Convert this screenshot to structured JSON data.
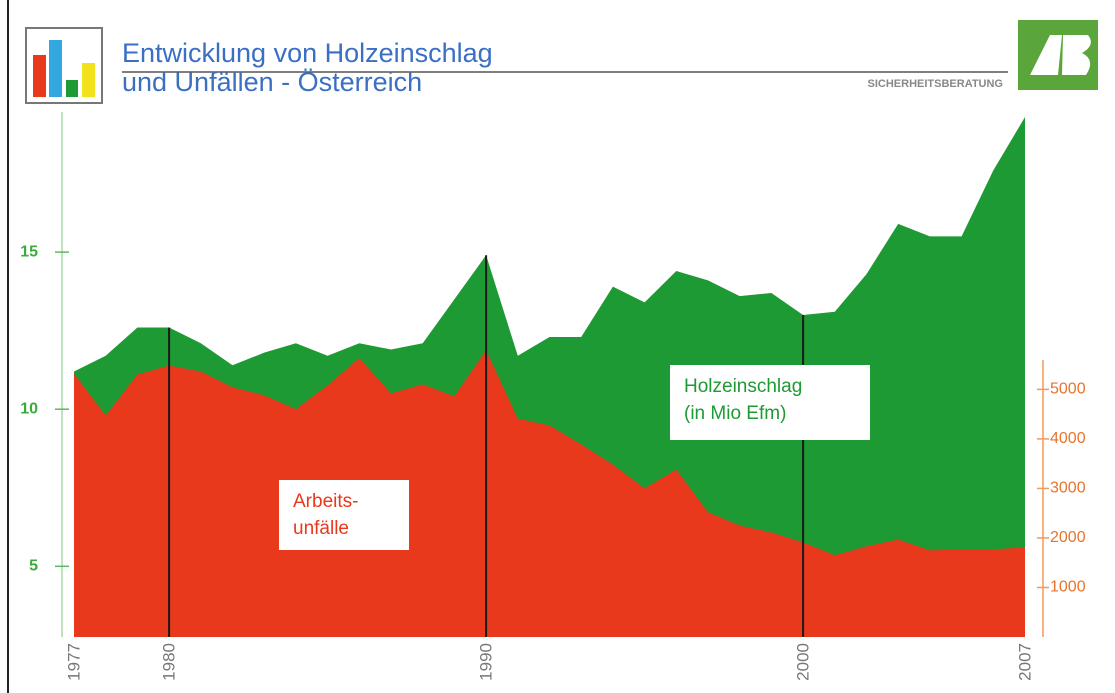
{
  "chart_data": {
    "type": "area",
    "title": "Entwicklung von Holzeinschlag\nund Unfällen - Österreich",
    "subtitle": "SICHERHEITSBERATUNG",
    "x": [
      1977,
      1978,
      1979,
      1980,
      1981,
      1982,
      1983,
      1984,
      1985,
      1986,
      1987,
      1988,
      1989,
      1990,
      1991,
      1992,
      1993,
      1994,
      1995,
      1996,
      1997,
      1998,
      1999,
      2000,
      2001,
      2002,
      2003,
      2004,
      2005,
      2006,
      2007
    ],
    "xlim": [
      1977,
      2007
    ],
    "xticks": [
      1977,
      1980,
      1990,
      2000,
      2007
    ],
    "ylim": [
      2.75,
      19.3
    ],
    "yticks": [
      5,
      10,
      15
    ],
    "y2lim": [
      0,
      10500
    ],
    "y2ticks": [
      1000,
      2000,
      3000,
      4000,
      5000
    ],
    "series": [
      {
        "name": "Holzeinschlag\n(in Mio Efm)",
        "color": "#1e9a34",
        "values": [
          11.2,
          11.7,
          12.6,
          12.6,
          12.1,
          11.4,
          11.8,
          12.1,
          11.7,
          12.1,
          11.9,
          12.1,
          13.5,
          14.9,
          11.7,
          12.3,
          12.3,
          13.9,
          13.4,
          14.4,
          14.1,
          13.6,
          13.7,
          13.0,
          13.1,
          14.3,
          15.9,
          15.5,
          15.5,
          17.6,
          19.3
        ]
      },
      {
        "name": "Arbeits-\nunfälle",
        "color": "#e8391c",
        "axis": "y2",
        "values": [
          5320,
          4470,
          5300,
          5480,
          5360,
          5040,
          4880,
          4600,
          5080,
          5630,
          4920,
          5100,
          4860,
          5790,
          4410,
          4270,
          3890,
          3480,
          3000,
          3380,
          2520,
          2250,
          2110,
          1910,
          1650,
          1830,
          1970,
          1750,
          1770,
          1770,
          1810
        ]
      }
    ]
  }
}
